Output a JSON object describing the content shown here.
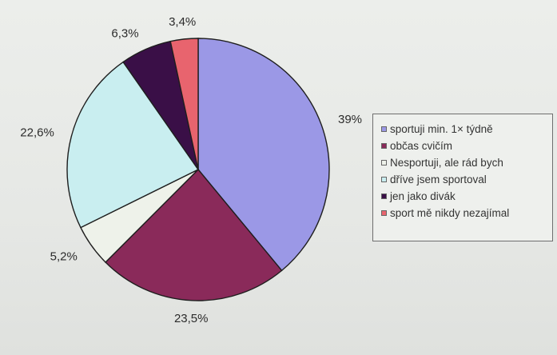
{
  "chart_data": {
    "type": "pie",
    "title": "",
    "slices": [
      {
        "label": "sportuji min. 1× týdně",
        "value": 39,
        "display": "39%",
        "color": "#9b98e6"
      },
      {
        "label": "občas cvičím",
        "value": 23.5,
        "display": "23,5%",
        "color": "#8a2a5a"
      },
      {
        "label": "Nesportuji, ale rád bych",
        "value": 5.2,
        "display": "5,2%",
        "color": "#eef2ea"
      },
      {
        "label": "dříve jsem sportoval",
        "value": 22.6,
        "display": "22,6%",
        "color": "#c9eef0"
      },
      {
        "label": "jen jako divák",
        "value": 6.3,
        "display": "6,3%",
        "color": "#3a0f47"
      },
      {
        "label": "sport mě nikdy nezajímal",
        "value": 3.4,
        "display": "3,4%",
        "color": "#e8646e"
      }
    ],
    "legend_position": "right",
    "start_angle_deg": 0,
    "direction": "clockwise"
  }
}
